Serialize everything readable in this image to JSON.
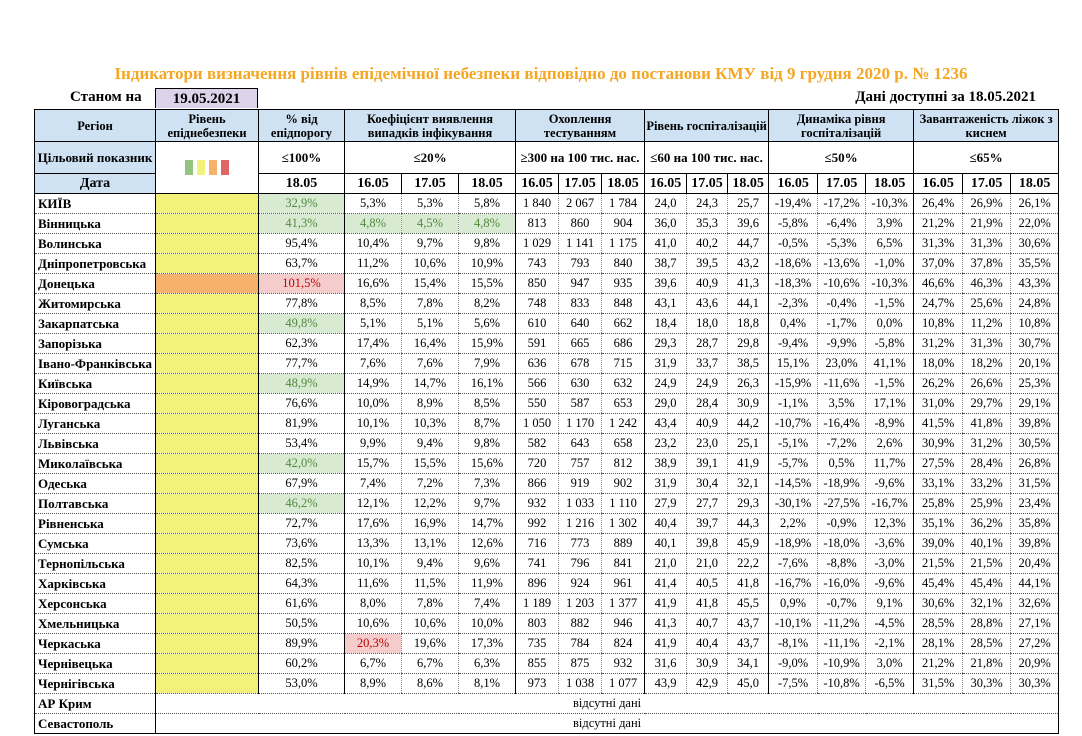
{
  "title": "Індикатори визначення рівнів епідемічної небезпеки відповідно до постанови КМУ від 9 грудня 2020 р. № 1236",
  "as_of_label": "Станом на",
  "as_of_date": "19.05.2021",
  "data_available": "Дані доступні за  18.05.2021",
  "colors": {
    "green": "#93c47d",
    "yellow": "#f2f27a",
    "orange": "#f6b26b",
    "red": "#e06666",
    "good_bg": "#d9ead3",
    "bad_bg": "#f4cccc",
    "header_bg": "#cfe2f3",
    "title": "#f5a623"
  },
  "headers": {
    "region": "Регіон",
    "level": "Рівень епіднебезпеки",
    "threshold": "% від епідпорогу",
    "coef": "Коефіцієнт виявлення випадків інфікування",
    "testing": "Охоплення тестуванням",
    "hosp": "Рівень госпіталізацій",
    "dynamics": "Динаміка рівня госпіталізацій",
    "beds": "Завантаженість ліжок з киснем"
  },
  "targets": {
    "label": "Цільовий показник",
    "level_swatches": [
      "green",
      "yellow",
      "orange",
      "red"
    ],
    "threshold": "≤100%",
    "coef": "≤20%",
    "testing": "≥300 на 100 тис. нас.",
    "hosp": "≤60 на 100 тис. нас.",
    "dynamics": "≤50%",
    "beds": "≤65%"
  },
  "date_row": {
    "label": "Дата",
    "threshold": "18.05",
    "dates": [
      "16.05",
      "17.05",
      "18.05"
    ]
  },
  "rows": [
    {
      "region": "КИЇВ",
      "level": "yellow",
      "values": [
        "32,9%",
        "5,3%",
        "5,3%",
        "5,8%",
        "1 840",
        "2 067",
        "1 784",
        "24,0",
        "24,3",
        "25,7",
        "-19,4%",
        "-17,2%",
        "-10,3%",
        "26,4%",
        "26,9%",
        "26,1%"
      ],
      "good": [
        0
      ],
      "bad": []
    },
    {
      "region": "Вінницька",
      "level": "yellow",
      "values": [
        "41,3%",
        "4,8%",
        "4,5%",
        "4,8%",
        "813",
        "860",
        "904",
        "36,0",
        "35,3",
        "39,6",
        "-5,8%",
        "-6,4%",
        "3,9%",
        "21,2%",
        "21,9%",
        "22,0%"
      ],
      "good": [
        0,
        1,
        2,
        3
      ],
      "bad": []
    },
    {
      "region": "Волинська",
      "level": "yellow",
      "values": [
        "95,4%",
        "10,4%",
        "9,7%",
        "9,8%",
        "1 029",
        "1 141",
        "1 175",
        "41,0",
        "40,2",
        "44,7",
        "-0,5%",
        "-5,3%",
        "6,5%",
        "31,3%",
        "31,3%",
        "30,6%"
      ],
      "good": [],
      "bad": []
    },
    {
      "region": "Дніпропетровська",
      "level": "yellow",
      "values": [
        "63,7%",
        "11,2%",
        "10,6%",
        "10,9%",
        "743",
        "793",
        "840",
        "38,7",
        "39,5",
        "43,2",
        "-18,6%",
        "-13,6%",
        "-1,0%",
        "37,0%",
        "37,8%",
        "35,5%"
      ],
      "good": [],
      "bad": []
    },
    {
      "region": "Донецька",
      "level": "orange",
      "values": [
        "101,5%",
        "16,6%",
        "15,4%",
        "15,5%",
        "850",
        "947",
        "935",
        "39,6",
        "40,9",
        "41,3",
        "-18,3%",
        "-10,6%",
        "-10,3%",
        "46,6%",
        "46,3%",
        "43,3%"
      ],
      "good": [],
      "bad": [
        0
      ]
    },
    {
      "region": "Житомирська",
      "level": "yellow",
      "values": [
        "77,8%",
        "8,5%",
        "7,8%",
        "8,2%",
        "748",
        "833",
        "848",
        "43,1",
        "43,6",
        "44,1",
        "-2,3%",
        "-0,4%",
        "-1,5%",
        "24,7%",
        "25,6%",
        "24,8%"
      ],
      "good": [],
      "bad": []
    },
    {
      "region": "Закарпатська",
      "level": "yellow",
      "values": [
        "49,8%",
        "5,1%",
        "5,1%",
        "5,6%",
        "610",
        "640",
        "662",
        "18,4",
        "18,0",
        "18,8",
        "0,4%",
        "-1,7%",
        "0,0%",
        "10,8%",
        "11,2%",
        "10,8%"
      ],
      "good": [
        0
      ],
      "bad": []
    },
    {
      "region": "Запорізька",
      "level": "yellow",
      "values": [
        "62,3%",
        "17,4%",
        "16,4%",
        "15,9%",
        "591",
        "665",
        "686",
        "29,3",
        "28,7",
        "29,8",
        "-9,4%",
        "-9,9%",
        "-5,8%",
        "31,2%",
        "31,3%",
        "30,7%"
      ],
      "good": [],
      "bad": []
    },
    {
      "region": "Івано-Франківська",
      "level": "yellow",
      "values": [
        "77,7%",
        "7,6%",
        "7,6%",
        "7,9%",
        "636",
        "678",
        "715",
        "31,9",
        "33,7",
        "38,5",
        "15,1%",
        "23,0%",
        "41,1%",
        "18,0%",
        "18,2%",
        "20,1%"
      ],
      "good": [],
      "bad": []
    },
    {
      "region": "Київська",
      "level": "yellow",
      "values": [
        "48,9%",
        "14,9%",
        "14,7%",
        "16,1%",
        "566",
        "630",
        "632",
        "24,9",
        "24,9",
        "26,3",
        "-15,9%",
        "-11,6%",
        "-1,5%",
        "26,2%",
        "26,6%",
        "25,3%"
      ],
      "good": [
        0
      ],
      "bad": []
    },
    {
      "region": "Кіровоградська",
      "level": "yellow",
      "values": [
        "76,6%",
        "10,0%",
        "8,9%",
        "8,5%",
        "550",
        "587",
        "653",
        "29,0",
        "28,4",
        "30,9",
        "-1,1%",
        "3,5%",
        "17,1%",
        "31,0%",
        "29,7%",
        "29,1%"
      ],
      "good": [],
      "bad": []
    },
    {
      "region": "Луганська",
      "level": "yellow",
      "values": [
        "81,9%",
        "10,1%",
        "10,3%",
        "8,7%",
        "1 050",
        "1 170",
        "1 242",
        "43,4",
        "40,9",
        "44,2",
        "-10,7%",
        "-16,4%",
        "-8,9%",
        "41,5%",
        "41,8%",
        "39,8%"
      ],
      "good": [],
      "bad": []
    },
    {
      "region": "Львівська",
      "level": "yellow",
      "values": [
        "53,4%",
        "9,9%",
        "9,4%",
        "9,8%",
        "582",
        "643",
        "658",
        "23,2",
        "23,0",
        "25,1",
        "-5,1%",
        "-7,2%",
        "2,6%",
        "30,9%",
        "31,2%",
        "30,5%"
      ],
      "good": [],
      "bad": []
    },
    {
      "region": "Миколаївська",
      "level": "yellow",
      "values": [
        "42,0%",
        "15,7%",
        "15,5%",
        "15,6%",
        "720",
        "757",
        "812",
        "38,9",
        "39,1",
        "41,9",
        "-5,7%",
        "0,5%",
        "11,7%",
        "27,5%",
        "28,4%",
        "26,8%"
      ],
      "good": [
        0
      ],
      "bad": []
    },
    {
      "region": "Одеська",
      "level": "yellow",
      "values": [
        "67,9%",
        "7,4%",
        "7,2%",
        "7,3%",
        "866",
        "919",
        "902",
        "31,9",
        "30,4",
        "32,1",
        "-14,5%",
        "-18,9%",
        "-9,6%",
        "33,1%",
        "33,2%",
        "31,5%"
      ],
      "good": [],
      "bad": []
    },
    {
      "region": "Полтавська",
      "level": "yellow",
      "values": [
        "46,2%",
        "12,1%",
        "12,2%",
        "9,7%",
        "932",
        "1 033",
        "1 110",
        "27,9",
        "27,7",
        "29,3",
        "-30,1%",
        "-27,5%",
        "-16,7%",
        "25,8%",
        "25,9%",
        "23,4%"
      ],
      "good": [
        0
      ],
      "bad": []
    },
    {
      "region": "Рівненська",
      "level": "yellow",
      "values": [
        "72,7%",
        "17,6%",
        "16,9%",
        "14,7%",
        "992",
        "1 216",
        "1 302",
        "40,4",
        "39,7",
        "44,3",
        "2,2%",
        "-0,9%",
        "12,3%",
        "35,1%",
        "36,2%",
        "35,8%"
      ],
      "good": [],
      "bad": []
    },
    {
      "region": "Сумська",
      "level": "yellow",
      "values": [
        "73,6%",
        "13,3%",
        "13,1%",
        "12,6%",
        "716",
        "773",
        "889",
        "40,1",
        "39,8",
        "45,9",
        "-18,9%",
        "-18,0%",
        "-3,6%",
        "39,0%",
        "40,1%",
        "39,8%"
      ],
      "good": [],
      "bad": []
    },
    {
      "region": "Тернопільська",
      "level": "yellow",
      "values": [
        "82,5%",
        "10,1%",
        "9,4%",
        "9,6%",
        "741",
        "796",
        "841",
        "21,0",
        "21,0",
        "22,2",
        "-7,6%",
        "-8,8%",
        "-3,0%",
        "21,5%",
        "21,5%",
        "20,4%"
      ],
      "good": [],
      "bad": []
    },
    {
      "region": "Харківська",
      "level": "yellow",
      "values": [
        "64,3%",
        "11,6%",
        "11,5%",
        "11,9%",
        "896",
        "924",
        "961",
        "41,4",
        "40,5",
        "41,8",
        "-16,7%",
        "-16,0%",
        "-9,6%",
        "45,4%",
        "45,4%",
        "44,1%"
      ],
      "good": [],
      "bad": []
    },
    {
      "region": "Херсонська",
      "level": "yellow",
      "values": [
        "61,6%",
        "8,0%",
        "7,8%",
        "7,4%",
        "1 189",
        "1 203",
        "1 377",
        "41,9",
        "41,8",
        "45,5",
        "0,9%",
        "-0,7%",
        "9,1%",
        "30,6%",
        "32,1%",
        "32,6%"
      ],
      "good": [],
      "bad": []
    },
    {
      "region": "Хмельницька",
      "level": "yellow",
      "values": [
        "50,5%",
        "10,6%",
        "10,6%",
        "10,0%",
        "803",
        "882",
        "946",
        "41,3",
        "40,7",
        "43,7",
        "-10,1%",
        "-11,2%",
        "-4,5%",
        "28,5%",
        "28,8%",
        "27,1%"
      ],
      "good": [],
      "bad": []
    },
    {
      "region": "Черкаська",
      "level": "yellow",
      "values": [
        "89,9%",
        "20,3%",
        "19,6%",
        "17,3%",
        "735",
        "784",
        "824",
        "41,9",
        "40,4",
        "43,7",
        "-8,1%",
        "-11,1%",
        "-2,1%",
        "28,1%",
        "28,5%",
        "27,2%"
      ],
      "good": [],
      "bad": [
        1
      ]
    },
    {
      "region": "Чернівецька",
      "level": "yellow",
      "values": [
        "60,2%",
        "6,7%",
        "6,7%",
        "6,3%",
        "855",
        "875",
        "932",
        "31,6",
        "30,9",
        "34,1",
        "-9,0%",
        "-10,9%",
        "3,0%",
        "21,2%",
        "21,8%",
        "20,9%"
      ],
      "good": [],
      "bad": []
    },
    {
      "region": "Чернігівська",
      "level": "yellow",
      "values": [
        "53,0%",
        "8,9%",
        "8,6%",
        "8,1%",
        "973",
        "1 038",
        "1 077",
        "43,9",
        "42,9",
        "45,0",
        "-7,5%",
        "-10,8%",
        "-6,5%",
        "31,5%",
        "30,3%",
        "30,3%"
      ],
      "good": [],
      "bad": []
    }
  ],
  "no_data_rows": [
    {
      "region": "АР Крим",
      "text": "відсутні дані"
    },
    {
      "region": "Севастополь",
      "text": "відсутні дані"
    }
  ]
}
